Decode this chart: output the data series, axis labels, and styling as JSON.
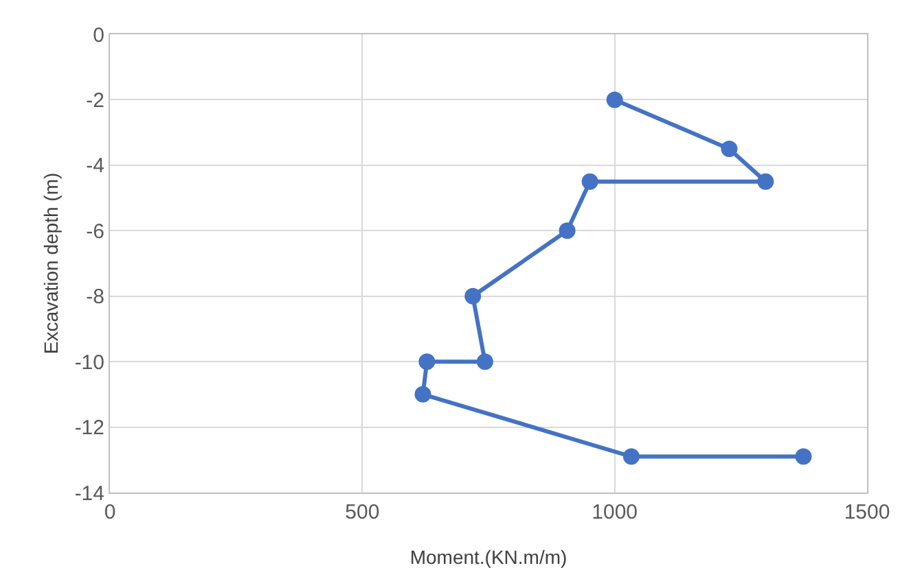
{
  "chart_data": {
    "type": "line",
    "xlabel": "Moment.(KN.m/m)",
    "ylabel": "Excavation depth (m)",
    "x": [
      1000,
      1227,
      1299,
      951,
      906,
      719,
      743,
      628,
      620,
      1033,
      1374
    ],
    "series": [
      {
        "color": "#4472c4",
        "values": [
          -2,
          -3.5,
          -4.5,
          -4.5,
          -6,
          -8,
          -10,
          -10,
          -11,
          -12.9,
          -12.9
        ]
      }
    ],
    "xlim": [
      0,
      1500
    ],
    "xticks": [
      0,
      500,
      1000,
      1500
    ],
    "ylim": [
      -14,
      0
    ],
    "yticks": [
      -14,
      -12,
      -10,
      -8,
      -6,
      -4,
      -2,
      0
    ],
    "grid": true,
    "marker": "circle",
    "line_style": "solid",
    "legend": false
  }
}
